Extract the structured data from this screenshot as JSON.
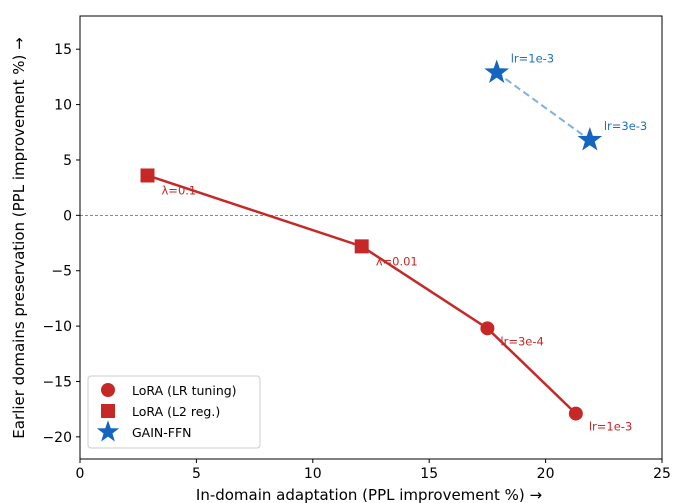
{
  "chart_data": {
    "type": "scatter",
    "xlabel": "In-domain adaptation (PPL improvement %) →",
    "ylabel": "Earlier domains preservation (PPL improvement %) →",
    "xlim": [
      0,
      25
    ],
    "ylim": [
      -22,
      18
    ],
    "xticks": [
      0,
      5,
      10,
      15,
      20,
      25
    ],
    "yticks": [
      -20,
      -15,
      -10,
      -5,
      0,
      5,
      10,
      15
    ],
    "grid": false,
    "reference_line": {
      "y": 0,
      "style": "dashed",
      "color": "#666666"
    },
    "legend": {
      "position": "bottom-left"
    },
    "series": [
      {
        "name": "LoRA (LR tuning)",
        "marker": "circle",
        "color": "#c62828",
        "points": [
          {
            "x": 17.5,
            "y": -10.2,
            "label": "lr=3e-4"
          },
          {
            "x": 21.3,
            "y": -17.9,
            "label": "lr=1e-3"
          }
        ]
      },
      {
        "name": "LoRA (L2 reg.)",
        "marker": "square",
        "color": "#c62828",
        "points": [
          {
            "x": 2.9,
            "y": 3.6,
            "label": "λ=0.1"
          },
          {
            "x": 12.1,
            "y": -2.8,
            "label": "λ=0.01"
          }
        ]
      },
      {
        "name": "GAIN-FFN",
        "marker": "star",
        "color": "#1565c0",
        "label_color": "#1e6fbf",
        "points": [
          {
            "x": 17.9,
            "y": 12.9,
            "label": "lr=1e-3"
          },
          {
            "x": 21.9,
            "y": 6.8,
            "label": "lr=3e-3"
          }
        ]
      }
    ],
    "connector_lines": [
      {
        "color": "#c62828",
        "style": "solid",
        "points": [
          [
            2.9,
            3.6
          ],
          [
            12.1,
            -2.8
          ],
          [
            17.5,
            -10.2
          ],
          [
            21.3,
            -17.9
          ]
        ]
      },
      {
        "color": "#7fb0e0",
        "style": "dashed",
        "points": [
          [
            17.9,
            12.9
          ],
          [
            21.9,
            6.8
          ]
        ]
      }
    ]
  }
}
